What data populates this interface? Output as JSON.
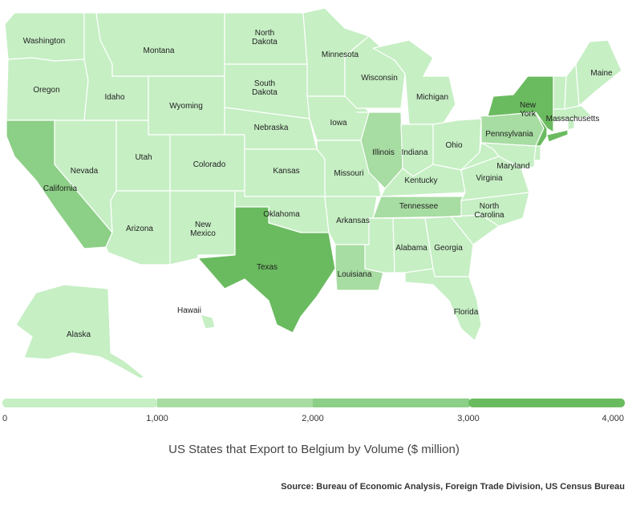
{
  "title": "US States that Export to Belgium by Volume ($ million)",
  "source": "Source: Bureau of Economic Analysis, Foreign Trade Division, US Census Bureau",
  "legend": {
    "ticks": [
      "0",
      "1,000",
      "2,000",
      "3,000",
      "4,000"
    ],
    "bins": [
      {
        "range": [
          0,
          1000
        ],
        "color": "#c6efc4"
      },
      {
        "range": [
          1000,
          2000
        ],
        "color": "#a7dca2"
      },
      {
        "range": [
          2000,
          3000
        ],
        "color": "#8ccf86"
      },
      {
        "range": [
          3000,
          4000
        ],
        "color": "#6abb5f"
      }
    ]
  },
  "states": {
    "washington": {
      "label": "Washington",
      "bin": 0
    },
    "oregon": {
      "label": "Oregon",
      "bin": 0
    },
    "california": {
      "label": "California",
      "bin": 2
    },
    "nevada": {
      "label": "Nevada",
      "bin": 0
    },
    "idaho": {
      "label": "Idaho",
      "bin": 0
    },
    "montana": {
      "label": "Montana",
      "bin": 0
    },
    "wyoming": {
      "label": "Wyoming",
      "bin": 0
    },
    "utah": {
      "label": "Utah",
      "bin": 0
    },
    "arizona": {
      "label": "Arizona",
      "bin": 0
    },
    "colorado": {
      "label": "Colorado",
      "bin": 0
    },
    "new_mexico": {
      "label": "New Mexico",
      "bin": 0
    },
    "north_dakota": {
      "label": "North Dakota",
      "bin": 0
    },
    "south_dakota": {
      "label": "South Dakota",
      "bin": 0
    },
    "nebraska": {
      "label": "Nebraska",
      "bin": 0
    },
    "kansas": {
      "label": "Kansas",
      "bin": 0
    },
    "oklahoma": {
      "label": "Oklahoma",
      "bin": 0
    },
    "texas": {
      "label": "Texas",
      "bin": 3
    },
    "minnesota": {
      "label": "Minnesota",
      "bin": 0
    },
    "iowa": {
      "label": "Iowa",
      "bin": 0
    },
    "missouri": {
      "label": "Missouri",
      "bin": 0
    },
    "arkansas": {
      "label": "Arkansas",
      "bin": 0
    },
    "louisiana": {
      "label": "Louisiana",
      "bin": 1
    },
    "wisconsin": {
      "label": "Wisconsin",
      "bin": 0
    },
    "illinois": {
      "label": "Illinois",
      "bin": 1
    },
    "michigan": {
      "label": "Michigan",
      "bin": 0
    },
    "indiana": {
      "label": "Indiana",
      "bin": 0
    },
    "ohio": {
      "label": "Ohio",
      "bin": 0
    },
    "kentucky": {
      "label": "Kentucky",
      "bin": 0
    },
    "tennessee": {
      "label": "Tennessee",
      "bin": 1
    },
    "mississippi": {
      "label": "",
      "bin": 0
    },
    "alabama": {
      "label": "Alabama",
      "bin": 0
    },
    "georgia": {
      "label": "Georgia",
      "bin": 0
    },
    "florida": {
      "label": "Florida",
      "bin": 0
    },
    "south_carolina": {
      "label": "",
      "bin": 0
    },
    "north_carolina": {
      "label": "North Carolina",
      "bin": 0
    },
    "virginia": {
      "label": "Virginia",
      "bin": 0
    },
    "west_virginia": {
      "label": "",
      "bin": 0
    },
    "maryland": {
      "label": "Maryland",
      "bin": 0
    },
    "delaware": {
      "label": "",
      "bin": 0
    },
    "new_jersey": {
      "label": "",
      "bin": 3
    },
    "pennsylvania": {
      "label": "Pennsylvania",
      "bin": 1
    },
    "new_york": {
      "label": "New York",
      "bin": 3
    },
    "connecticut": {
      "label": "",
      "bin": 3
    },
    "rhode_island": {
      "label": "",
      "bin": 0
    },
    "massachusetts": {
      "label": "Massachusetts",
      "bin": 0
    },
    "vermont": {
      "label": "",
      "bin": 0
    },
    "new_hampshire": {
      "label": "",
      "bin": 0
    },
    "maine": {
      "label": "Maine",
      "bin": 0
    },
    "alaska": {
      "label": "Alaska",
      "bin": 0
    },
    "hawaii": {
      "label": "Hawaii",
      "bin": 0
    }
  }
}
